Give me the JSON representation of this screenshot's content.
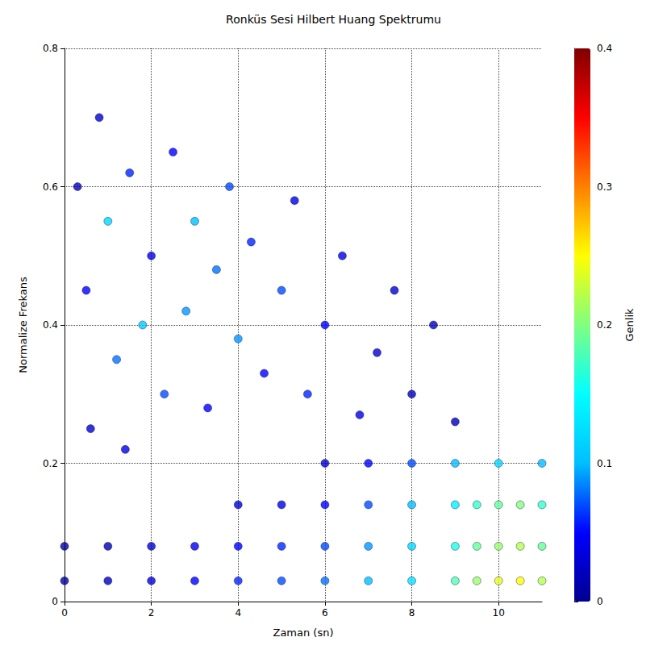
{
  "chart_data": {
    "type": "scatter",
    "title": "Ronküs Sesi Hilbert Huang Spektrumu",
    "xlabel": "Zaman (sn)",
    "ylabel": "Normalize Frekans",
    "zlabel": "Genlik",
    "grid": true,
    "xlim": [
      0,
      11
    ],
    "xticks": [
      0,
      2,
      4,
      6,
      8,
      10
    ],
    "ylim": [
      0,
      0.8
    ],
    "yticks": [
      0,
      0.2,
      0.4,
      0.6,
      0.8
    ],
    "x": [
      0,
      1,
      2,
      3,
      4,
      5,
      6,
      7,
      8,
      9,
      9.5,
      10,
      10.5,
      11,
      0,
      1,
      2,
      3,
      4,
      5,
      6,
      7,
      8,
      9,
      9.5,
      10,
      10.5,
      11,
      4,
      5,
      6,
      7,
      8,
      9,
      9.5,
      10,
      10.5,
      11,
      6,
      7,
      8,
      9,
      10,
      11,
      0.3,
      0.5,
      0.8,
      1.0,
      1.2,
      1.5,
      1.8,
      2.0,
      2.3,
      2.5,
      2.8,
      3.0,
      3.3,
      3.5,
      3.8,
      4.0,
      4.3,
      4.6,
      5.0,
      5.3,
      5.6,
      6.0,
      6.4,
      6.8,
      7.2,
      7.6,
      8.0,
      8.5,
      9.0,
      0.6,
      1.4
    ],
    "y": [
      0.03,
      0.03,
      0.03,
      0.03,
      0.03,
      0.03,
      0.03,
      0.03,
      0.03,
      0.03,
      0.03,
      0.03,
      0.03,
      0.03,
      0.08,
      0.08,
      0.08,
      0.08,
      0.08,
      0.08,
      0.08,
      0.08,
      0.08,
      0.08,
      0.08,
      0.08,
      0.08,
      0.08,
      0.14,
      0.14,
      0.14,
      0.14,
      0.14,
      0.14,
      0.14,
      0.14,
      0.14,
      0.14,
      0.2,
      0.2,
      0.2,
      0.2,
      0.2,
      0.2,
      0.6,
      0.45,
      0.7,
      0.55,
      0.35,
      0.62,
      0.4,
      0.5,
      0.3,
      0.65,
      0.42,
      0.55,
      0.28,
      0.48,
      0.6,
      0.38,
      0.52,
      0.33,
      0.45,
      0.58,
      0.3,
      0.4,
      0.5,
      0.27,
      0.36,
      0.45,
      0.3,
      0.4,
      0.26,
      0.25,
      0.22
    ],
    "amplitude": [
      0.005,
      0.02,
      0.035,
      0.05,
      0.06,
      0.07,
      0.08,
      0.1,
      0.13,
      0.18,
      0.21,
      0.24,
      0.25,
      0.22,
      0.005,
      0.015,
      0.03,
      0.04,
      0.05,
      0.06,
      0.07,
      0.09,
      0.12,
      0.16,
      0.19,
      0.21,
      0.22,
      0.19,
      0.03,
      0.04,
      0.05,
      0.07,
      0.1,
      0.14,
      0.17,
      0.19,
      0.2,
      0.17,
      0.03,
      0.05,
      0.07,
      0.1,
      0.12,
      0.1,
      0.02,
      0.05,
      0.03,
      0.12,
      0.08,
      0.06,
      0.11,
      0.04,
      0.07,
      0.05,
      0.09,
      0.1,
      0.05,
      0.08,
      0.07,
      0.09,
      0.06,
      0.05,
      0.07,
      0.04,
      0.06,
      0.05,
      0.04,
      0.04,
      0.03,
      0.03,
      0.02,
      0.02,
      0.02,
      0.03,
      0.04
    ],
    "colorbar": {
      "range": [
        0,
        0.4
      ],
      "ticks": [
        0,
        0.1,
        0.2,
        0.3,
        0.4
      ]
    }
  }
}
